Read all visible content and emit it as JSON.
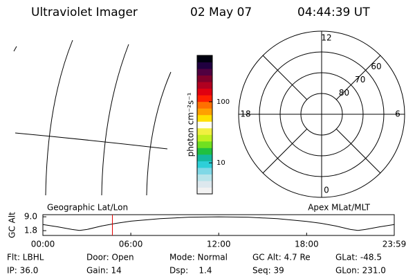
{
  "header": {
    "title": "Ultraviolet Imager",
    "date": "02 May 07",
    "time": "04:44:39 UT"
  },
  "colorbar": {
    "label": "photon cm⁻²s⁻¹",
    "log": true,
    "lim": [
      3.1,
      575
    ],
    "ticks": [
      10,
      100
    ],
    "colors": [
      "#f2f2f2",
      "#dde8ee",
      "#b8e4ea",
      "#7fd8e6",
      "#2ecfd8",
      "#14b8a0",
      "#20c040",
      "#70e020",
      "#c0f020",
      "#f0f040",
      "#fffff0",
      "#ffe000",
      "#ffa000",
      "#ff7000",
      "#ff2000",
      "#e00010",
      "#b00020",
      "#80002a",
      "#500040",
      "#200040",
      "#000010"
    ]
  },
  "polar": {
    "mlt_ticks": [
      12,
      18,
      6,
      0
    ],
    "lat_ticks": [
      80,
      70,
      60
    ],
    "lat_lim": [
      90,
      50
    ]
  },
  "chart_data": {
    "type": "line",
    "ylabel": "GC Alt",
    "left_label": "Geographic Lat/Lon",
    "right_label": "Apex MLat/MLT",
    "x": [
      0,
      1,
      2,
      2.5,
      3,
      4,
      5,
      6,
      8,
      10,
      12,
      14,
      16,
      18,
      19,
      20,
      21,
      21.5,
      22,
      23,
      23.98
    ],
    "values": [
      5.0,
      3.8,
      2.4,
      1.9,
      2.4,
      4.2,
      5.6,
      6.7,
      8.0,
      8.8,
      9.0,
      8.8,
      8.0,
      6.6,
      5.6,
      4.2,
      2.4,
      1.9,
      2.4,
      3.8,
      5.0
    ],
    "color": "#000000",
    "current_x": 4.744,
    "current_color": "#e00000",
    "xlim": [
      0,
      23.98
    ],
    "xticks": [
      {
        "value": 0,
        "label": "00:00"
      },
      {
        "value": 6,
        "label": "06:00"
      },
      {
        "value": 12,
        "label": "12:00"
      },
      {
        "value": 18,
        "label": "18:00"
      },
      {
        "value": 23.98,
        "label": "23:59"
      }
    ],
    "ylim": [
      -0.7,
      10.1
    ],
    "yticks": [
      {
        "value": 9,
        "label": "9.0"
      },
      {
        "value": 1.8,
        "label": "1.8"
      }
    ]
  },
  "info": [
    [
      "Flt: LBHL",
      "Door: Open",
      "Mode: Normal",
      "GC Alt: 4.7 Re",
      "GLat: -48.5"
    ],
    [
      "IP: 36.0",
      "Gain: 14",
      "Dsp:    1.4",
      "Seq: 39",
      "GLon: 231.0"
    ]
  ]
}
